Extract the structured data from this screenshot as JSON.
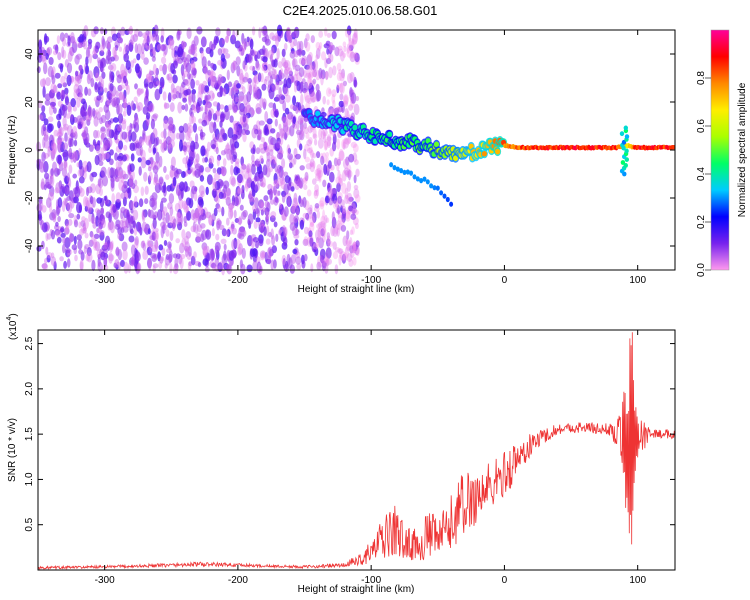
{
  "title": "C2E4.2025.010.06.58.G01",
  "chart_data": [
    {
      "type": "heatmap",
      "xlabel": "Height of straight line (km)",
      "ylabel": "Frequency (Hz)",
      "xlim": [
        -350,
        128
      ],
      "ylim": [
        -50,
        50
      ],
      "xticks": [
        -300,
        -200,
        -100,
        0,
        100
      ],
      "yticks": [
        -40,
        -20,
        0,
        20,
        40
      ],
      "grid": false,
      "colorbar": {
        "label": "Normalized spectral amplitude",
        "range": [
          0,
          1
        ],
        "ticks": [
          "0.0",
          "0.2",
          "0.4",
          "0.6",
          "0.8"
        ],
        "colors": [
          "#ff99ee",
          "#7722ee",
          "#0000ff",
          "#00ccff",
          "#00ff66",
          "#aaff00",
          "#ffee00",
          "#ff8800",
          "#ff0000",
          "#ff0099"
        ]
      },
      "noise_region": {
        "x_range": [
          -350,
          -115
        ],
        "f_range": [
          -50,
          50
        ],
        "level": 0.15
      },
      "signal_track": [
        {
          "x": -150,
          "f": 14,
          "a": 0.3
        },
        {
          "x": -130,
          "f": 12,
          "a": 0.38
        },
        {
          "x": -115,
          "f": 9,
          "a": 0.42
        },
        {
          "x": -100,
          "f": 6,
          "a": 0.45
        },
        {
          "x": -85,
          "f": 4,
          "a": 0.48
        },
        {
          "x": -70,
          "f": 3,
          "a": 0.5
        },
        {
          "x": -55,
          "f": 1,
          "a": 0.55
        },
        {
          "x": -40,
          "f": -2,
          "a": 0.62
        },
        {
          "x": -25,
          "f": -1,
          "a": 0.72
        },
        {
          "x": -10,
          "f": 1,
          "a": 0.8
        },
        {
          "x": 0,
          "f": 2,
          "a": 0.85
        },
        {
          "x": 10,
          "f": 1,
          "a": 0.9
        },
        {
          "x": 30,
          "f": 1,
          "a": 0.93
        },
        {
          "x": 60,
          "f": 1,
          "a": 0.95
        },
        {
          "x": 85,
          "f": 1,
          "a": 0.92
        },
        {
          "x": 90,
          "f": 2,
          "a": 0.7
        },
        {
          "x": 100,
          "f": 1,
          "a": 0.93
        },
        {
          "x": 128,
          "f": 1,
          "a": 0.95
        }
      ],
      "branch_track": [
        {
          "x": -85,
          "f": -6,
          "a": 0.3
        },
        {
          "x": -70,
          "f": -10,
          "a": 0.3
        },
        {
          "x": -55,
          "f": -14,
          "a": 0.3
        },
        {
          "x": -40,
          "f": -22,
          "a": 0.25
        }
      ],
      "spread_feature": {
        "x": 90,
        "f_range": [
          -10,
          10
        ],
        "a": 0.35
      }
    },
    {
      "type": "line",
      "xlabel": "Height of straight line (km)",
      "ylabel": "SNR (10 * v/v)",
      "y_multiplier": "(x10",
      "y_multiplier_exp": "4",
      "y_multiplier_close": ")",
      "xlim": [
        -350,
        128
      ],
      "ylim": [
        0,
        2.65
      ],
      "xticks": [
        -300,
        -200,
        -100,
        0,
        100
      ],
      "yticks": [
        "0.5",
        "1.0",
        "1.5",
        "2.0",
        "2.5"
      ],
      "grid": false,
      "series": [
        {
          "color": "#ee3333",
          "envelope": [
            {
              "x": -350,
              "lo": 0.01,
              "hi": 0.04
            },
            {
              "x": -300,
              "lo": 0.02,
              "hi": 0.05
            },
            {
              "x": -260,
              "lo": 0.03,
              "hi": 0.07
            },
            {
              "x": -230,
              "lo": 0.04,
              "hi": 0.09
            },
            {
              "x": -210,
              "lo": 0.04,
              "hi": 0.08
            },
            {
              "x": -180,
              "lo": 0.03,
              "hi": 0.06
            },
            {
              "x": -150,
              "lo": 0.02,
              "hi": 0.05
            },
            {
              "x": -120,
              "lo": 0.03,
              "hi": 0.08
            },
            {
              "x": -105,
              "lo": 0.06,
              "hi": 0.22
            },
            {
              "x": -92,
              "lo": 0.12,
              "hi": 0.55
            },
            {
              "x": -82,
              "lo": 0.15,
              "hi": 0.75
            },
            {
              "x": -75,
              "lo": 0.12,
              "hi": 0.5
            },
            {
              "x": -65,
              "lo": 0.1,
              "hi": 0.45
            },
            {
              "x": -58,
              "lo": 0.12,
              "hi": 0.65
            },
            {
              "x": -50,
              "lo": 0.15,
              "hi": 0.6
            },
            {
              "x": -42,
              "lo": 0.2,
              "hi": 0.75
            },
            {
              "x": -35,
              "lo": 0.3,
              "hi": 1.05
            },
            {
              "x": -25,
              "lo": 0.45,
              "hi": 1.15
            },
            {
              "x": -15,
              "lo": 0.6,
              "hi": 1.2
            },
            {
              "x": -5,
              "lo": 0.75,
              "hi": 1.25
            },
            {
              "x": 5,
              "lo": 0.9,
              "hi": 1.4
            },
            {
              "x": 12,
              "lo": 1.1,
              "hi": 1.45
            },
            {
              "x": 25,
              "lo": 1.35,
              "hi": 1.55
            },
            {
              "x": 40,
              "lo": 1.5,
              "hi": 1.62
            },
            {
              "x": 60,
              "lo": 1.52,
              "hi": 1.64
            },
            {
              "x": 80,
              "lo": 1.48,
              "hi": 1.62
            },
            {
              "x": 88,
              "lo": 1.2,
              "hi": 1.75
            },
            {
              "x": 92,
              "lo": 0.1,
              "hi": 2.6
            },
            {
              "x": 96,
              "lo": 0.05,
              "hi": 2.65
            },
            {
              "x": 100,
              "lo": 1.2,
              "hi": 1.7
            },
            {
              "x": 110,
              "lo": 1.46,
              "hi": 1.56
            },
            {
              "x": 128,
              "lo": 1.45,
              "hi": 1.55
            }
          ]
        }
      ]
    }
  ]
}
